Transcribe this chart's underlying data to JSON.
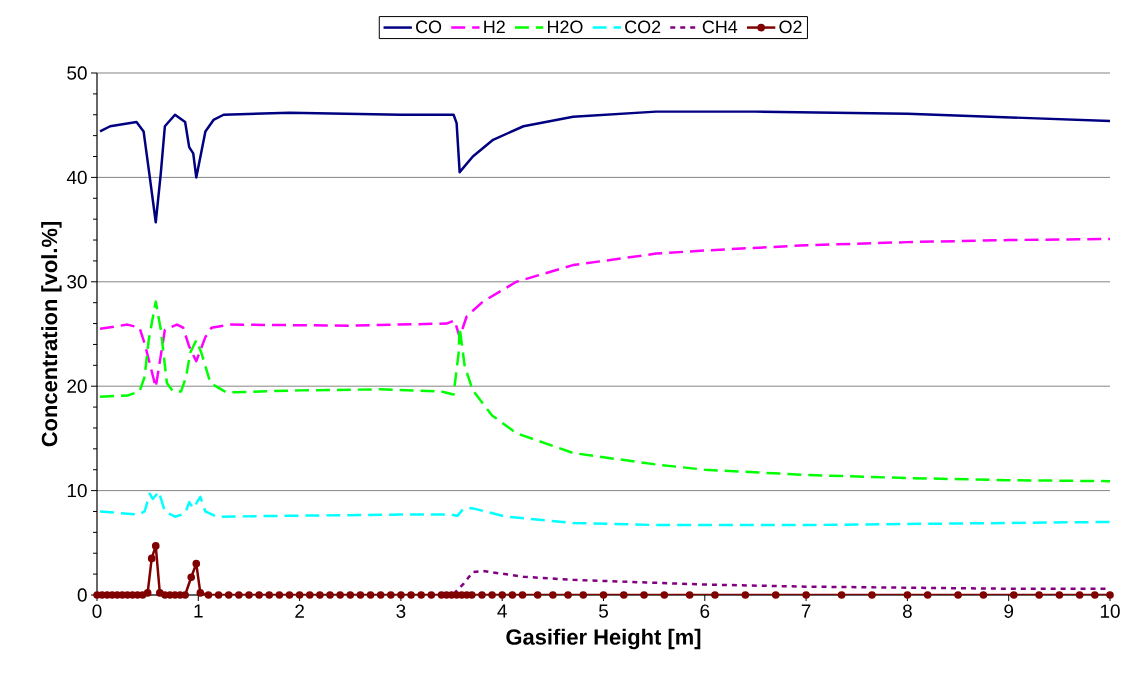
{
  "chart_data": {
    "type": "line",
    "xlabel": "Gasifier Height [m]",
    "ylabel": "Concentration [vol.%]",
    "xlim": [
      0,
      10
    ],
    "ylim": [
      0,
      50
    ],
    "xticks": [
      0,
      1,
      2,
      3,
      4,
      5,
      6,
      7,
      8,
      9,
      10
    ],
    "yticks": [
      0,
      10,
      20,
      30,
      40,
      50
    ],
    "grid": "y",
    "legend": "top",
    "series": [
      {
        "name": "CO",
        "color": "#000080",
        "line_style": "solid",
        "marker": "none",
        "x": [
          0.03,
          0.13,
          0.39,
          0.46,
          0.52,
          0.58,
          0.63,
          0.67,
          0.77,
          0.87,
          0.91,
          0.95,
          0.98,
          1.07,
          1.15,
          1.25,
          1.9,
          3.0,
          3.52,
          3.55,
          3.58,
          3.71,
          3.91,
          4.21,
          4.7,
          5.52,
          6.5,
          8.0,
          10.0
        ],
        "values": [
          44.4,
          44.9,
          45.3,
          44.4,
          40.1,
          35.7,
          40.4,
          44.9,
          46.0,
          45.3,
          42.9,
          42.3,
          40.0,
          44.4,
          45.5,
          46.0,
          46.2,
          46.0,
          46.0,
          45.2,
          40.5,
          42.0,
          43.6,
          44.9,
          45.8,
          46.3,
          46.3,
          46.1,
          45.4
        ]
      },
      {
        "name": "H2",
        "color": "#ff00ff",
        "line_style": "dashed",
        "marker": "none",
        "x": [
          0.03,
          0.3,
          0.42,
          0.47,
          0.58,
          0.67,
          0.79,
          0.85,
          0.91,
          0.98,
          1.07,
          1.13,
          1.31,
          2.5,
          3.45,
          3.53,
          3.58,
          3.65,
          3.81,
          4.14,
          4.7,
          5.52,
          6.0,
          7.0,
          8.0,
          9.0,
          10.0
        ],
        "values": [
          25.5,
          25.9,
          25.6,
          24.1,
          19.9,
          25.4,
          25.9,
          25.6,
          23.8,
          22.4,
          24.7,
          25.6,
          25.9,
          25.8,
          26.0,
          26.3,
          24.7,
          26.7,
          28.1,
          30.0,
          31.6,
          32.7,
          33.0,
          33.5,
          33.8,
          34.0,
          34.1
        ]
      },
      {
        "name": "H2O",
        "color": "#00ff00",
        "line_style": "dashed",
        "marker": "none",
        "x": [
          0.03,
          0.3,
          0.42,
          0.47,
          0.51,
          0.58,
          0.63,
          0.69,
          0.75,
          0.83,
          0.88,
          0.92,
          0.98,
          1.03,
          1.12,
          1.28,
          2.0,
          2.8,
          3.4,
          3.52,
          3.57,
          3.58,
          3.63,
          3.71,
          3.9,
          4.14,
          4.7,
          5.52,
          6.0,
          7.0,
          8.0,
          9.0,
          10.0
        ],
        "values": [
          19.0,
          19.1,
          19.5,
          20.9,
          24.4,
          28.1,
          25.4,
          20.3,
          19.5,
          19.5,
          20.9,
          23.2,
          24.4,
          23.2,
          20.3,
          19.4,
          19.6,
          19.7,
          19.5,
          19.2,
          23.2,
          25.6,
          21.9,
          19.6,
          17.2,
          15.5,
          13.6,
          12.5,
          12.0,
          11.5,
          11.2,
          11.0,
          10.9
        ]
      },
      {
        "name": "CO2",
        "color": "#00ffff",
        "line_style": "dashed",
        "marker": "none",
        "x": [
          0.03,
          0.41,
          0.47,
          0.52,
          0.55,
          0.61,
          0.67,
          0.77,
          0.87,
          0.91,
          0.95,
          1.02,
          1.07,
          1.18,
          2.0,
          3.0,
          3.5,
          3.56,
          3.62,
          3.71,
          4.04,
          4.7,
          5.52,
          6.0,
          7.0,
          8.0,
          9.0,
          10.0
        ],
        "values": [
          8.0,
          7.7,
          8.0,
          9.7,
          9.2,
          9.9,
          8.0,
          7.5,
          7.8,
          8.9,
          8.3,
          9.4,
          8.0,
          7.5,
          7.6,
          7.7,
          7.7,
          7.6,
          8.3,
          8.3,
          7.5,
          6.9,
          6.7,
          6.7,
          6.7,
          6.8,
          6.9,
          7.0
        ]
      },
      {
        "name": "CH4",
        "color": "#800080",
        "line_style": "dotted",
        "marker": "none",
        "x": [
          3.52,
          3.62,
          3.71,
          3.81,
          4.21,
          4.7,
          5.42,
          6.0,
          7.0,
          8.0,
          9.0,
          10.0
        ],
        "values": [
          0.1,
          1.1,
          2.2,
          2.3,
          1.75,
          1.45,
          1.2,
          1.0,
          0.8,
          0.7,
          0.6,
          0.6
        ]
      },
      {
        "name": "O2",
        "color": "#800000",
        "line_style": "solid",
        "marker": "circle",
        "x": [
          0.0,
          0.05,
          0.1,
          0.15,
          0.2,
          0.25,
          0.3,
          0.35,
          0.4,
          0.45,
          0.5,
          0.54,
          0.58,
          0.62,
          0.67,
          0.72,
          0.77,
          0.82,
          0.87,
          0.93,
          0.98,
          1.02,
          1.1,
          1.2,
          1.3,
          1.4,
          1.5,
          1.6,
          1.7,
          1.8,
          1.9,
          2.0,
          2.1,
          2.2,
          2.3,
          2.4,
          2.5,
          2.6,
          2.7,
          2.8,
          2.9,
          3.0,
          3.1,
          3.2,
          3.3,
          3.4,
          3.45,
          3.5,
          3.55,
          3.6,
          3.65,
          3.7,
          3.8,
          3.9,
          4.0,
          4.1,
          4.2,
          4.35,
          4.5,
          4.65,
          4.8,
          5.0,
          5.2,
          5.4,
          5.6,
          5.85,
          6.1,
          6.4,
          6.7,
          7.0,
          7.35,
          7.65,
          8.0,
          8.2,
          8.5,
          8.75,
          9.05,
          9.3,
          9.5,
          9.7,
          9.85,
          10.0
        ],
        "values": [
          0,
          0,
          0,
          0,
          0,
          0,
          0,
          0,
          0,
          0,
          0.2,
          3.5,
          4.7,
          0.2,
          0,
          0,
          0,
          0,
          0,
          1.7,
          3.0,
          0.2,
          0,
          0,
          0,
          0,
          0,
          0,
          0,
          0,
          0,
          0,
          0,
          0,
          0,
          0,
          0,
          0,
          0,
          0,
          0,
          0,
          0,
          0,
          0,
          0,
          0,
          0,
          0,
          0,
          0,
          0,
          0,
          0,
          0,
          0,
          0,
          0,
          0,
          0,
          0,
          0,
          0,
          0,
          0,
          0,
          0,
          0,
          0,
          0,
          0,
          0,
          0,
          0,
          0,
          0,
          0,
          0,
          0,
          0,
          0,
          0
        ]
      }
    ]
  }
}
